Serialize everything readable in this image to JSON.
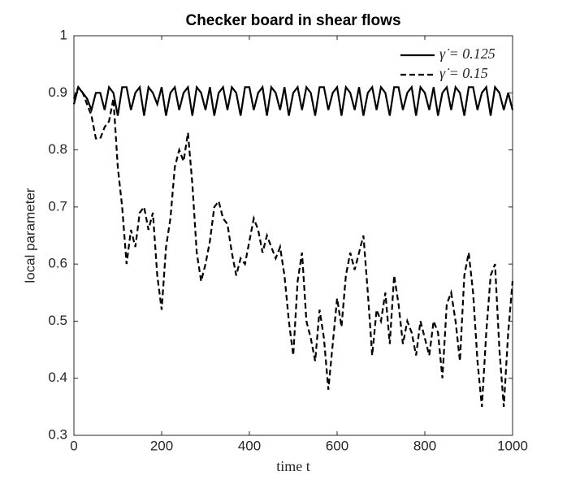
{
  "chart_data": {
    "type": "line",
    "title": "Checker board in shear flows",
    "xlabel": "time t",
    "ylabel": "local parameter",
    "xlim": [
      0,
      1000
    ],
    "xticks": [
      0,
      200,
      400,
      600,
      800,
      1000
    ],
    "ylim": [
      0.3,
      1
    ],
    "yticks": [
      0.3,
      0.4,
      0.5,
      0.6,
      0.7,
      0.8,
      0.9,
      1
    ],
    "legend": "upper right",
    "x": [
      0,
      10,
      20,
      30,
      40,
      50,
      60,
      70,
      80,
      90,
      100,
      110,
      120,
      130,
      140,
      150,
      160,
      170,
      180,
      190,
      200,
      210,
      220,
      230,
      240,
      250,
      260,
      270,
      280,
      290,
      300,
      310,
      320,
      330,
      340,
      350,
      360,
      370,
      380,
      390,
      400,
      410,
      420,
      430,
      440,
      450,
      460,
      470,
      480,
      490,
      500,
      510,
      520,
      530,
      540,
      550,
      560,
      570,
      580,
      590,
      600,
      610,
      620,
      630,
      640,
      650,
      660,
      670,
      680,
      690,
      700,
      710,
      720,
      730,
      740,
      750,
      760,
      770,
      780,
      790,
      800,
      810,
      820,
      830,
      840,
      850,
      860,
      870,
      880,
      890,
      900,
      910,
      920,
      930,
      940,
      950,
      960,
      970,
      980,
      990,
      1000
    ],
    "series": [
      {
        "name": "γ̇ = 0.125",
        "color": "#000000",
        "line_style": "solid",
        "values": [
          0.88,
          0.91,
          0.9,
          0.89,
          0.87,
          0.9,
          0.9,
          0.87,
          0.91,
          0.9,
          0.86,
          0.91,
          0.91,
          0.87,
          0.9,
          0.91,
          0.86,
          0.91,
          0.9,
          0.88,
          0.91,
          0.86,
          0.9,
          0.91,
          0.87,
          0.9,
          0.91,
          0.86,
          0.91,
          0.9,
          0.87,
          0.91,
          0.86,
          0.9,
          0.91,
          0.87,
          0.91,
          0.9,
          0.86,
          0.91,
          0.91,
          0.87,
          0.9,
          0.91,
          0.86,
          0.91,
          0.9,
          0.87,
          0.91,
          0.86,
          0.9,
          0.91,
          0.87,
          0.91,
          0.9,
          0.86,
          0.91,
          0.91,
          0.87,
          0.9,
          0.91,
          0.86,
          0.91,
          0.9,
          0.87,
          0.91,
          0.86,
          0.9,
          0.91,
          0.87,
          0.91,
          0.9,
          0.86,
          0.91,
          0.91,
          0.87,
          0.9,
          0.91,
          0.86,
          0.91,
          0.9,
          0.87,
          0.91,
          0.86,
          0.9,
          0.91,
          0.87,
          0.91,
          0.9,
          0.86,
          0.91,
          0.91,
          0.87,
          0.9,
          0.91,
          0.86,
          0.91,
          0.9,
          0.87,
          0.9,
          0.87
        ]
      },
      {
        "name": "γ̇ = 0.15",
        "color": "#000000",
        "line_style": "dashed",
        "values": [
          0.89,
          0.91,
          0.9,
          0.88,
          0.86,
          0.82,
          0.82,
          0.84,
          0.85,
          0.89,
          0.77,
          0.7,
          0.6,
          0.66,
          0.63,
          0.69,
          0.7,
          0.66,
          0.69,
          0.58,
          0.52,
          0.63,
          0.68,
          0.77,
          0.8,
          0.78,
          0.83,
          0.74,
          0.62,
          0.57,
          0.6,
          0.64,
          0.7,
          0.71,
          0.68,
          0.67,
          0.62,
          0.58,
          0.61,
          0.6,
          0.64,
          0.68,
          0.66,
          0.62,
          0.65,
          0.63,
          0.61,
          0.63,
          0.58,
          0.5,
          0.44,
          0.57,
          0.62,
          0.5,
          0.47,
          0.43,
          0.52,
          0.47,
          0.38,
          0.46,
          0.54,
          0.49,
          0.58,
          0.62,
          0.59,
          0.62,
          0.65,
          0.55,
          0.44,
          0.52,
          0.5,
          0.55,
          0.46,
          0.58,
          0.53,
          0.46,
          0.5,
          0.48,
          0.44,
          0.5,
          0.47,
          0.44,
          0.5,
          0.48,
          0.4,
          0.53,
          0.55,
          0.5,
          0.43,
          0.58,
          0.62,
          0.55,
          0.43,
          0.35,
          0.48,
          0.58,
          0.6,
          0.45,
          0.35,
          0.48,
          0.57
        ]
      }
    ]
  }
}
